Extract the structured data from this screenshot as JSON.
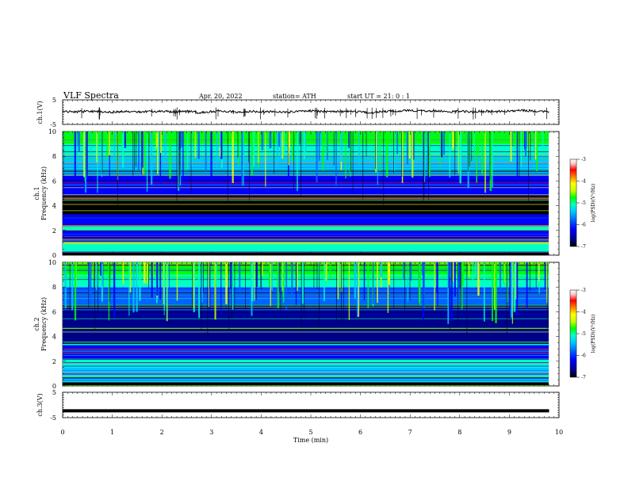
{
  "header": {
    "title": "VLF  Spectra",
    "date": "Apr. 20, 2022",
    "station": "station= ATH",
    "start": "start  UT  =    21: 0   : 1"
  },
  "chart_data": [
    {
      "type": "line",
      "panel": "ch1-waveform",
      "ylabel": "ch.1(V)",
      "ylim": [
        -5,
        5
      ],
      "yticks": [
        "5",
        "-5"
      ],
      "x": [
        0,
        0.25,
        0.5,
        0.75,
        1,
        1.25,
        1.5,
        1.75,
        2,
        2.25,
        2.5,
        2.75,
        3,
        3.25,
        3.5,
        3.75,
        4,
        4.25,
        4.5,
        4.75,
        5,
        5.25,
        5.5,
        5.75,
        6,
        6.25,
        6.5,
        6.75,
        7,
        7.25,
        7.5,
        7.75,
        8,
        8.25,
        8.5,
        8.75,
        9,
        9.25,
        9.5,
        9.8
      ],
      "y": [
        0.3,
        0.1,
        0.4,
        0.2,
        -0.1,
        0.3,
        0.0,
        0.2,
        0.4,
        0.1,
        0.3,
        -0.2,
        0.2,
        0.4,
        0.1,
        0.3,
        0.0,
        0.2,
        -0.1,
        0.4,
        0.6,
        0.2,
        0.1,
        0.3,
        0.0,
        -0.2,
        0.3,
        0.5,
        0.7,
        0.4,
        0.6,
        0.2,
        0.3,
        0.1,
        0.4,
        0.2,
        0.5,
        0.8,
        0.4,
        0.2
      ]
    },
    {
      "type": "heatmap",
      "panel": "ch1-spectrogram",
      "ylabel": "ch.1\nFrequency  (kHz)",
      "ylim": [
        0,
        10
      ],
      "yticks": [
        "0",
        "2",
        "4",
        "6",
        "8",
        "10"
      ],
      "colorbar": {
        "label": "log(PSD)(V²/Hz)",
        "range": [
          -7,
          -3
        ],
        "ticks": [
          "-3",
          "-4",
          "-5",
          "-6",
          "-7"
        ]
      },
      "bands_khz": [
        {
          "from": 0.0,
          "to": 0.3,
          "log_psd": -7.0
        },
        {
          "from": 0.3,
          "to": 1.0,
          "log_psd": -5.5
        },
        {
          "from": 1.0,
          "to": 2.0,
          "log_psd": -6.2
        },
        {
          "from": 2.0,
          "to": 2.3,
          "log_psd": -5.2
        },
        {
          "from": 2.3,
          "to": 3.3,
          "log_psd": -6.3
        },
        {
          "from": 3.3,
          "to": 4.8,
          "log_psd": -6.9
        },
        {
          "from": 4.8,
          "to": 6.5,
          "log_psd": -6.4
        },
        {
          "from": 6.5,
          "to": 8.0,
          "log_psd": -5.8
        },
        {
          "from": 8.0,
          "to": 9.0,
          "log_psd": -5.2
        },
        {
          "from": 9.0,
          "to": 10.0,
          "log_psd": -4.9
        }
      ]
    },
    {
      "type": "heatmap",
      "panel": "ch2-spectrogram",
      "ylabel": "ch.2\nFrequency  (kHz)",
      "ylim": [
        0,
        10
      ],
      "yticks": [
        "0",
        "2",
        "4",
        "6",
        "8",
        "10"
      ],
      "colorbar": {
        "label": "log(PSD)(V²/Hz)",
        "range": [
          -7,
          -3
        ],
        "ticks": [
          "-3",
          "-4",
          "-5",
          "-6",
          "-7"
        ]
      },
      "bands_khz": [
        {
          "from": 0.0,
          "to": 0.3,
          "log_psd": -7.0
        },
        {
          "from": 0.3,
          "to": 1.5,
          "log_psd": -5.6
        },
        {
          "from": 1.5,
          "to": 2.2,
          "log_psd": -5.3
        },
        {
          "from": 2.2,
          "to": 3.3,
          "log_psd": -6.3
        },
        {
          "from": 3.3,
          "to": 3.6,
          "log_psd": -5.4
        },
        {
          "from": 3.6,
          "to": 6.5,
          "log_psd": -6.6
        },
        {
          "from": 6.5,
          "to": 8.0,
          "log_psd": -6.0
        },
        {
          "from": 8.0,
          "to": 9.0,
          "log_psd": -5.3
        },
        {
          "from": 9.0,
          "to": 10.0,
          "log_psd": -4.9
        }
      ]
    },
    {
      "type": "line",
      "panel": "ch3-waveform",
      "ylabel": "ch.3(V)",
      "ylim": [
        -5,
        5
      ],
      "yticks": [
        "5",
        "-5"
      ],
      "x": [
        0,
        9.8
      ],
      "y": [
        -2.3,
        -2.3
      ]
    }
  ],
  "xaxis": {
    "label": "Time  (min)",
    "range": [
      0,
      10
    ],
    "ticks": [
      "0",
      "1",
      "2",
      "3",
      "4",
      "5",
      "6",
      "7",
      "8",
      "9",
      "10"
    ]
  },
  "colors": {
    "waveform": "#000000",
    "colormap": [
      "#000000",
      "#00008b",
      "#0000ff",
      "#0064ff",
      "#00c8ff",
      "#00ffc8",
      "#00ff00",
      "#c8ff00",
      "#ffff00",
      "#ff8000",
      "#ff0000",
      "#ffc8c8",
      "#ffffff"
    ]
  }
}
